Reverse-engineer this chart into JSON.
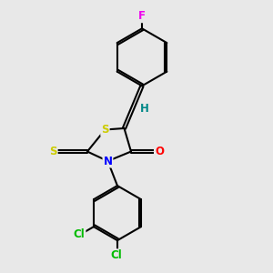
{
  "bg_color": "#e8e8e8",
  "bond_color": "#000000",
  "bond_width": 1.5,
  "atom_colors": {
    "F": "#ee00ee",
    "S": "#cccc00",
    "N": "#0000ff",
    "O": "#ff0000",
    "Cl": "#00bb00",
    "H": "#008888",
    "C": "#000000"
  },
  "font_size": 8.5,
  "figsize": [
    3.0,
    3.0
  ],
  "dpi": 100
}
